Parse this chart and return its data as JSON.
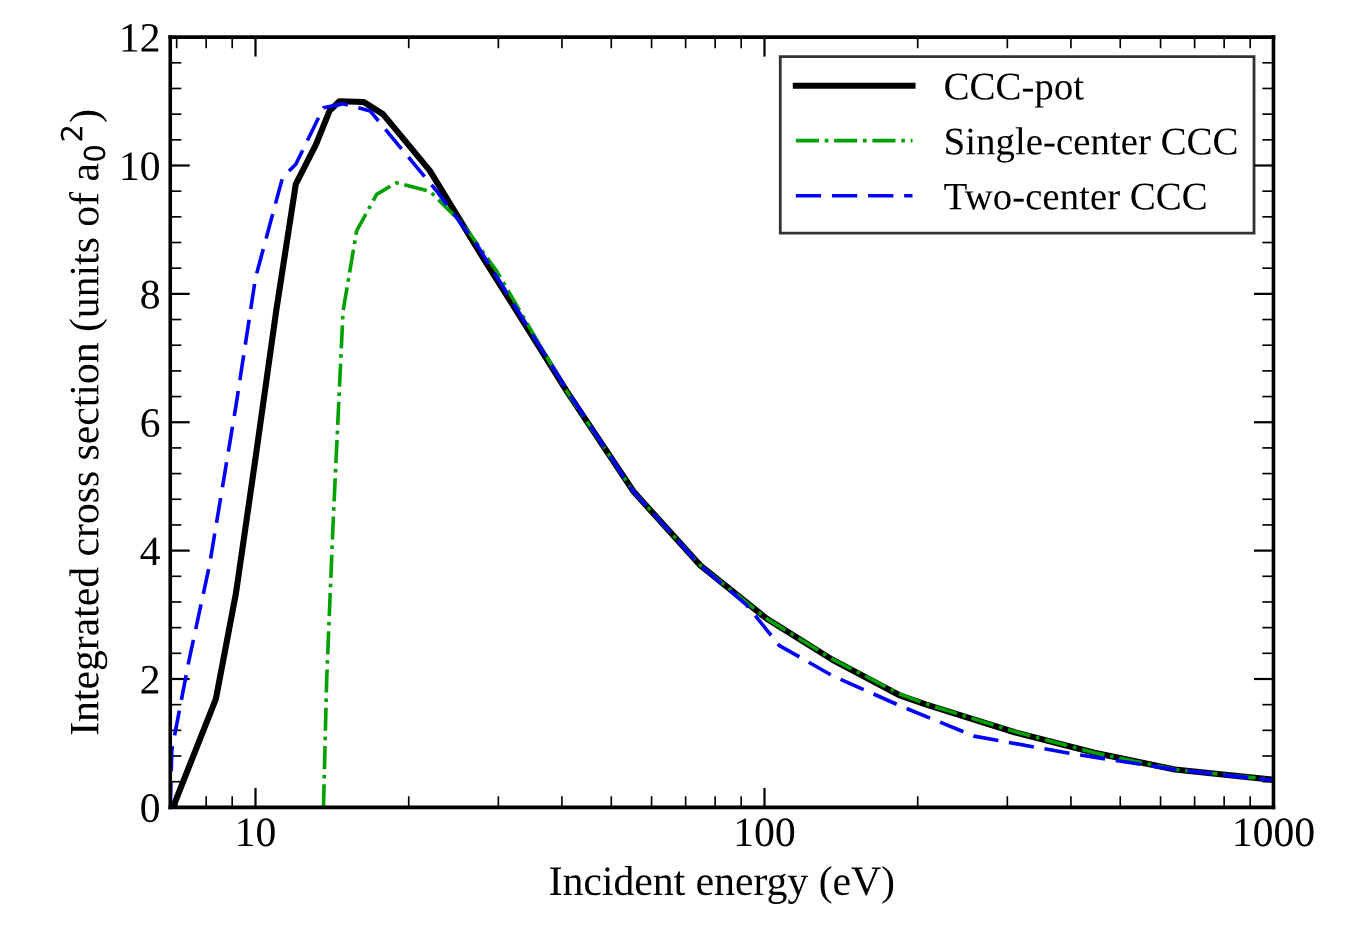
{
  "chart_data": {
    "type": "line",
    "xlabel": "Incident energy (eV)",
    "ylabel": "Integrated cross section (units of a$_{0}$$^{2}$)",
    "log": "x",
    "xlim": [
      6.8,
      1000
    ],
    "xticks": [
      10,
      100,
      1000
    ],
    "ylim": [
      0,
      12
    ],
    "yticks": [
      0,
      2,
      4,
      6,
      8,
      10,
      12
    ],
    "grid": false,
    "legend": "top right",
    "series": [
      {
        "name": "CCC-pot",
        "color": "#000000",
        "line_style": "solid",
        "x": [
          6.8,
          6.9,
          8.36,
          9.16,
          10.0,
          10.98,
          12.0,
          13.15,
          13.98,
          14.6,
          16.3,
          17.8,
          22.0,
          28.0,
          30.2,
          37.9,
          40.9,
          55.3,
          74.8,
          101,
          136,
          185,
          208,
          310,
          445,
          640,
          1000
        ],
        "values": [
          0,
          0.02,
          1.69,
          3.35,
          5.44,
          7.73,
          9.71,
          10.33,
          10.85,
          11.0,
          10.99,
          10.8,
          9.92,
          8.56,
          8.15,
          6.9,
          6.48,
          4.92,
          3.77,
          2.94,
          2.3,
          1.74,
          1.6,
          1.17,
          0.85,
          0.59,
          0.43
        ]
      },
      {
        "name": "Single-center CCC",
        "color": "#00a000",
        "line_style": "dashdot",
        "x": [
          13.6,
          13.8,
          14.2,
          14.86,
          15.8,
          17.3,
          18.9,
          22.0,
          25.6,
          29.8,
          40.9,
          55.3,
          74.8,
          101,
          136,
          185,
          208,
          310,
          445,
          640,
          1000
        ],
        "values": [
          0,
          2.0,
          4.4,
          7.73,
          8.98,
          9.55,
          9.73,
          9.6,
          9.08,
          8.35,
          6.48,
          4.92,
          3.77,
          2.94,
          2.31,
          1.76,
          1.61,
          1.18,
          0.85,
          0.59,
          0.43
        ]
      },
      {
        "name": "Two-center CCC",
        "color": "#0000ff",
        "line_style": "dashed",
        "x": [
          6.8,
          6.85,
          7.41,
          8.12,
          9.16,
          10.0,
          11.3,
          12.0,
          13.6,
          14.86,
          16.8,
          19.5,
          22.7,
          27.2,
          40.9,
          55.3,
          74.8,
          92.3,
          107,
          136,
          185,
          258,
          405,
          640,
          1000
        ],
        "values": [
          0,
          0.9,
          2.31,
          3.77,
          6.27,
          8.25,
          9.81,
          10.02,
          10.9,
          10.96,
          10.85,
          10.23,
          9.6,
          8.77,
          6.5,
          4.92,
          3.77,
          3.15,
          2.52,
          2.05,
          1.58,
          1.11,
          0.83,
          0.59,
          0.42
        ]
      }
    ]
  }
}
